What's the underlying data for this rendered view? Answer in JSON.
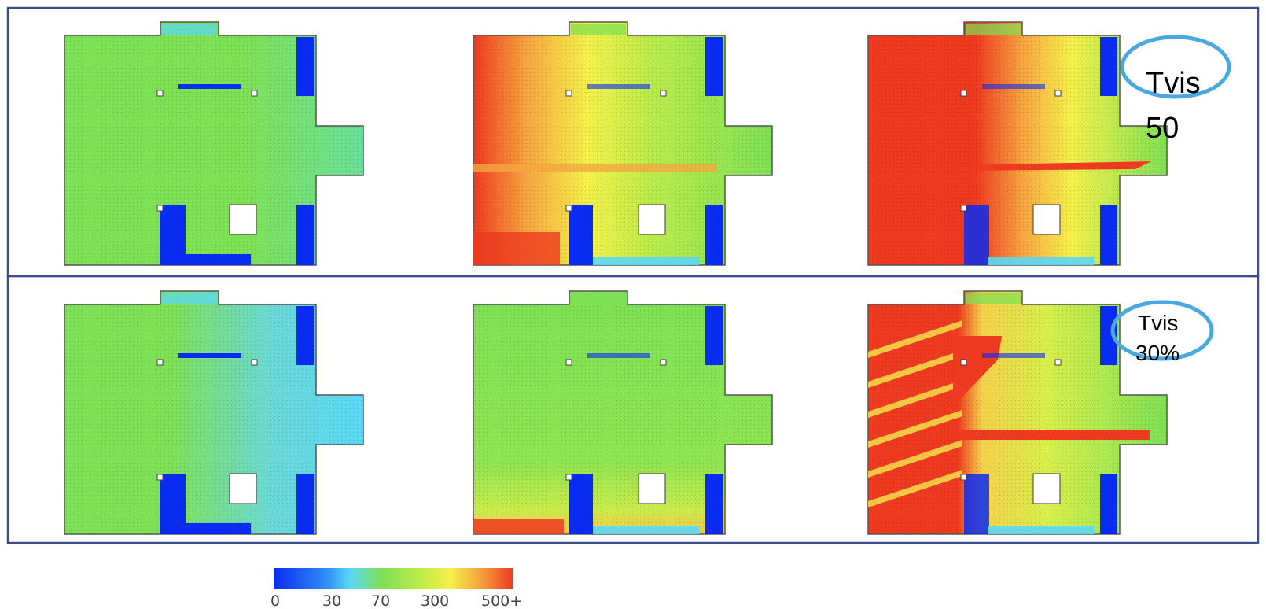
{
  "chart_data": {
    "type": "heatmap",
    "panels": [
      {
        "row": 1,
        "col": 1,
        "illuminance_pattern": "low"
      },
      {
        "row": 1,
        "col": 2,
        "illuminance_pattern": "medium"
      },
      {
        "row": 1,
        "col": 3,
        "illuminance_pattern": "high"
      },
      {
        "row": 2,
        "col": 1,
        "illuminance_pattern": "very-low"
      },
      {
        "row": 2,
        "col": 2,
        "illuminance_pattern": "low-medium"
      },
      {
        "row": 2,
        "col": 3,
        "illuminance_pattern": "high-striped"
      }
    ],
    "row_labels": [
      [
        "Tvis",
        "50"
      ],
      [
        "Tvis",
        "30%"
      ]
    ],
    "colorbar": {
      "ticks": [
        "0",
        "30",
        "70",
        "300",
        "500+"
      ],
      "colors": [
        "#0a2cf0",
        "#5ad8f6",
        "#7ee055",
        "#f4f04a",
        "#ee3a20"
      ]
    }
  }
}
